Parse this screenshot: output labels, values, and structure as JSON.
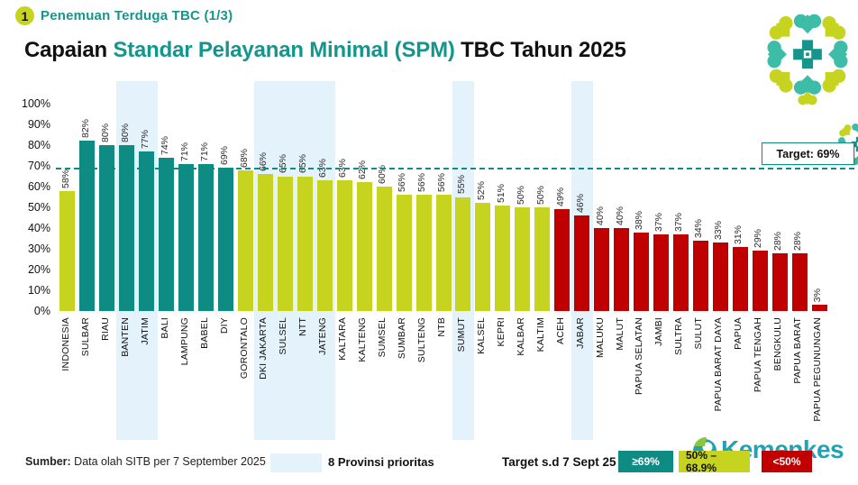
{
  "header": {
    "badge": "1",
    "kicker": "Penemuan Terduga TBC (1/3)",
    "title_prefix": "Capaian ",
    "title_highlight": "Standar Pelayanan Minimal (SPM)",
    "title_suffix": " TBC Tahun 2025"
  },
  "chart_data": {
    "type": "bar",
    "title": "Capaian Standar Pelayanan Minimal (SPM) TBC Tahun 2025",
    "xlabel": "",
    "ylabel": "",
    "ylim": [
      0,
      100
    ],
    "grid": false,
    "y_tick_labels": [
      "0%",
      "10%",
      "20%",
      "30%",
      "40%",
      "50%",
      "60%",
      "70%",
      "80%",
      "90%",
      "100%"
    ],
    "categories": [
      "INDONESIA",
      "SULBAR",
      "RIAU",
      "BANTEN",
      "JATIM",
      "BALI",
      "LAMPUNG",
      "BABEL",
      "DIY",
      "GORONTALO",
      "DKI JAKARTA",
      "SULSEL",
      "NTT",
      "JATENG",
      "KALTARA",
      "KALTENG",
      "SUMSEL",
      "SUMBAR",
      "SULTENG",
      "NTB",
      "SUMUT",
      "KALSEL",
      "KEPRI",
      "KALBAR",
      "KALTIM",
      "ACEH",
      "JABAR",
      "MALUKU",
      "MALUT",
      "PAPUA SELATAN",
      "JAMBI",
      "SULTRA",
      "SULUT",
      "PAPUA BARAT DAYA",
      "PAPUA",
      "PAPUA TENGAH",
      "BENGKULU",
      "PAPUA BARAT",
      "PAPUA PEGUNUNGAN"
    ],
    "values": [
      58,
      82,
      80,
      80,
      77,
      74,
      71,
      71,
      69,
      68,
      66,
      65,
      65,
      63,
      63,
      62,
      60,
      56,
      56,
      56,
      55,
      52,
      51,
      50,
      50,
      49,
      46,
      40,
      40,
      38,
      37,
      37,
      34,
      33,
      31,
      29,
      28,
      28,
      3
    ],
    "value_label_format": "{v}%",
    "highlighted_categories": [
      "BANTEN",
      "JATIM",
      "DKI JAKARTA",
      "SULSEL",
      "NTT",
      "JATENG",
      "SUMUT",
      "JABAR"
    ],
    "thresholds": {
      "teal_min": 69,
      "yellow_min": 50
    },
    "target": {
      "value": 69,
      "label": "Target: 69%"
    }
  },
  "legend": {
    "target_note": "Target s.d 7 Sept 25",
    "items": [
      {
        "label": "≥69%",
        "color": "#0E8C84",
        "text_color": "#ffffff"
      },
      {
        "label": "50% – 68.9%",
        "color": "#C6D41F",
        "text_color": "#111111"
      },
      {
        "label": "<50%",
        "color": "#C00000",
        "text_color": "#ffffff"
      }
    ]
  },
  "footer": {
    "source_label": "Sumber:",
    "source_text": " Data olah SITB per 7 September 2025",
    "priority_label": "8 Provinsi prioritas"
  },
  "logo": {
    "wordmark": "Kemenkes"
  },
  "colors": {
    "teal": "#0E8C84",
    "yellow_green": "#C6D41F",
    "red": "#C00000",
    "highlight_band": "#E3F2FB",
    "accent_title": "#14968D"
  }
}
